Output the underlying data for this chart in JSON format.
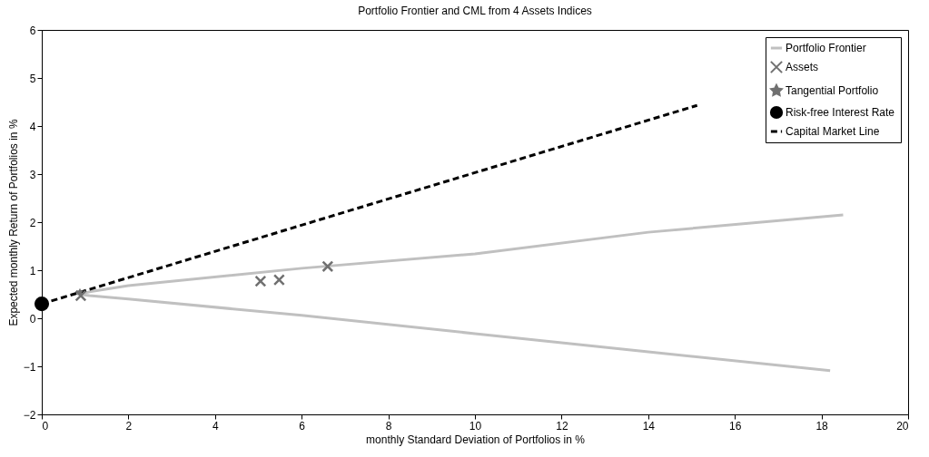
{
  "chart_data": {
    "type": "line",
    "title": "Portfolio Frontier and CML from 4 Assets Indices",
    "xlabel": "monthly Standard Deviation of Portfolios in %",
    "ylabel": "Expected monthly Return of Portfolios in %",
    "xlim": [
      0,
      20
    ],
    "ylim": [
      -2,
      6
    ],
    "xticks": [
      0,
      2,
      4,
      6,
      8,
      10,
      12,
      14,
      16,
      18,
      20
    ],
    "yticks": [
      -2,
      -1,
      0,
      1,
      2,
      3,
      4,
      5,
      6
    ],
    "grid": false,
    "legend": "top right",
    "series": [
      {
        "name": "Portfolio Frontier",
        "color": "#c0c0c0",
        "x": [
          18.2,
          14,
          10,
          6,
          2,
          1.1,
          0.85,
          1.1,
          2,
          6,
          10,
          14,
          18.5
        ],
        "values": [
          -1.09,
          -0.7,
          -0.32,
          0.06,
          0.4,
          0.47,
          0.5,
          0.55,
          0.68,
          1.04,
          1.34,
          1.79,
          2.15
        ]
      },
      {
        "name": "Assets",
        "type": "scatter",
        "marker": "cross",
        "color": "#707070",
        "x": [
          0.9,
          5.05,
          5.48,
          6.6
        ],
        "values": [
          0.47,
          0.77,
          0.8,
          1.08
        ]
      },
      {
        "name": "Tangential Portfolio",
        "type": "scatter",
        "marker": "star",
        "color": "#707070",
        "x": [
          0.88
        ],
        "values": [
          0.55
        ]
      },
      {
        "name": "Risk-free Interest Rate",
        "type": "scatter",
        "marker": "circle",
        "color": "#000000",
        "x": [
          0
        ],
        "values": [
          0.3
        ]
      },
      {
        "name": "Capital Market Line",
        "line_style": "dashed",
        "color": "#000000",
        "x": [
          0,
          15.13
        ],
        "values": [
          0.3,
          4.43
        ]
      }
    ]
  }
}
